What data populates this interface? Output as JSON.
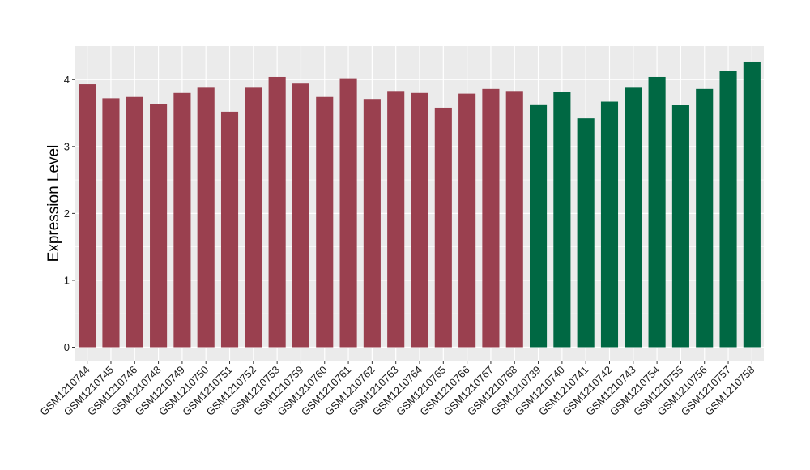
{
  "chart_data": {
    "type": "bar",
    "ylabel": "Expression Level",
    "xlabel": "",
    "ylim": [
      -0.2,
      4.5
    ],
    "yticks": [
      0,
      1,
      2,
      3,
      4
    ],
    "grid": true,
    "colors": {
      "group_a": "#9a404f",
      "group_b": "#006843",
      "panel_bg": "#ebebeb",
      "grid": "#ffffff"
    },
    "categories": [
      "GSM1210744",
      "GSM1210745",
      "GSM1210746",
      "GSM1210748",
      "GSM1210749",
      "GSM1210750",
      "GSM1210751",
      "GSM1210752",
      "GSM1210753",
      "GSM1210759",
      "GSM1210760",
      "GSM1210761",
      "GSM1210762",
      "GSM1210763",
      "GSM1210764",
      "GSM1210765",
      "GSM1210766",
      "GSM1210767",
      "GSM1210768",
      "GSM1210739",
      "GSM1210740",
      "GSM1210741",
      "GSM1210742",
      "GSM1210743",
      "GSM1210754",
      "GSM1210755",
      "GSM1210756",
      "GSM1210757",
      "GSM1210758"
    ],
    "values": [
      3.93,
      3.72,
      3.74,
      3.64,
      3.8,
      3.89,
      3.52,
      3.89,
      4.04,
      3.94,
      3.74,
      4.02,
      3.71,
      3.83,
      3.8,
      3.58,
      3.79,
      3.86,
      3.83,
      3.63,
      3.82,
      3.42,
      3.67,
      3.89,
      4.04,
      3.62,
      3.86,
      4.13,
      4.27
    ],
    "groups": [
      "a",
      "a",
      "a",
      "a",
      "a",
      "a",
      "a",
      "a",
      "a",
      "a",
      "a",
      "a",
      "a",
      "a",
      "a",
      "a",
      "a",
      "a",
      "a",
      "b",
      "b",
      "b",
      "b",
      "b",
      "b",
      "b",
      "b",
      "b",
      "b"
    ]
  }
}
